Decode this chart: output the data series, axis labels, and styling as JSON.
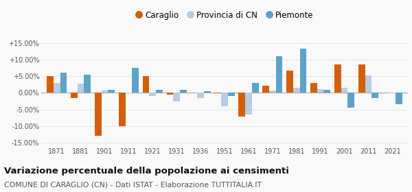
{
  "years": [
    1871,
    1881,
    1901,
    1911,
    1921,
    1931,
    1936,
    1951,
    1961,
    1971,
    1981,
    1991,
    2001,
    2011,
    2021
  ],
  "caraglio": [
    5.0,
    -1.5,
    -13.0,
    -10.0,
    5.0,
    -0.5,
    0.1,
    -0.2,
    -7.2,
    2.2,
    6.7,
    3.0,
    8.5,
    8.5,
    0.0
  ],
  "provincia_cn": [
    3.0,
    2.8,
    0.8,
    -0.2,
    -1.0,
    -2.5,
    -1.5,
    -4.0,
    -6.5,
    0.8,
    1.5,
    1.2,
    1.5,
    5.2,
    -0.2
  ],
  "piemonte": [
    6.0,
    5.4,
    1.0,
    7.5,
    1.0,
    1.0,
    0.5,
    -1.0,
    3.0,
    11.0,
    13.3,
    1.0,
    -4.5,
    -1.5,
    -3.5
  ],
  "bar_width": 0.28,
  "ylim": [
    -16.0,
    17.0
  ],
  "yticks": [
    -15.0,
    -10.0,
    -5.0,
    0.0,
    5.0,
    10.0,
    15.0
  ],
  "ytick_labels": [
    "-15.00%",
    "-10.00%",
    "-5.00%",
    "0.00%",
    "+5.00%",
    "+10.00%",
    "+15.00%"
  ],
  "color_caraglio": "#d45f0a",
  "color_provincia": "#b8cce4",
  "color_piemonte": "#5ba3c9",
  "legend_labels": [
    "Caraglio",
    "Provincia di CN",
    "Piemonte"
  ],
  "title": "Variazione percentuale della popolazione ai censimenti",
  "subtitle": "COMUNE DI CARAGLIO (CN) - Dati ISTAT - Elaborazione TUTTITALIA.IT",
  "grid_color": "#e0e0e0",
  "bg_color": "#f9f9f9",
  "title_fontsize": 9.5,
  "subtitle_fontsize": 7.8
}
